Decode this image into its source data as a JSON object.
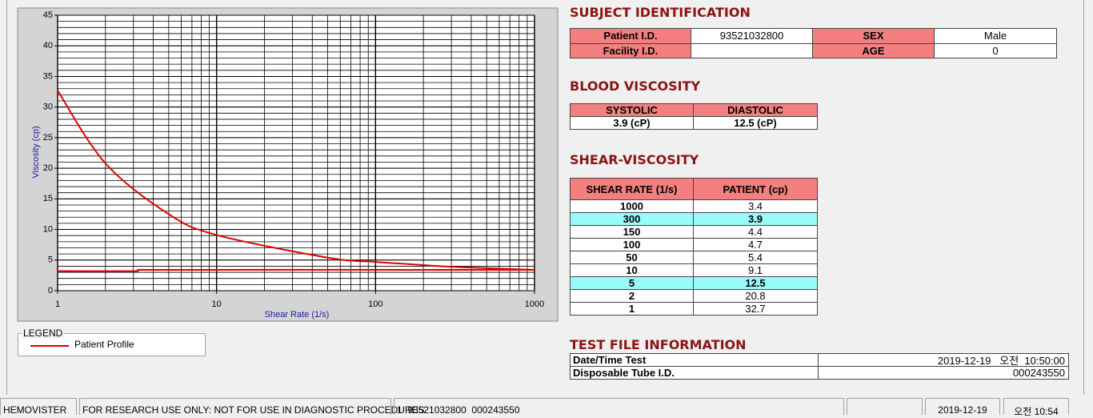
{
  "chart_data": {
    "type": "line",
    "x_label": "Shear Rate (1/s)",
    "y_label": "Viscosity (cp)",
    "xscale": "log",
    "xlim": [
      1,
      1000
    ],
    "xticks": [
      1,
      10,
      100,
      1000
    ],
    "ylim": [
      0,
      45
    ],
    "yticks": [
      0,
      5,
      10,
      15,
      20,
      25,
      30,
      35,
      40,
      45
    ],
    "grid": true,
    "minor_grid": true,
    "legend_title": "LEGEND",
    "series": [
      {
        "name": "Patient Profile",
        "color": "#e00000",
        "x": [
          1,
          2,
          5,
          10,
          50,
          100,
          150,
          300,
          1000
        ],
        "values": [
          32.7,
          20.8,
          12.5,
          9.1,
          5.4,
          4.7,
          4.4,
          3.9,
          3.4
        ]
      },
      {
        "color": "#e00000",
        "x": [
          1,
          3.2,
          3.2,
          1000
        ],
        "values": [
          3.2,
          3.2,
          3.4,
          3.4
        ]
      }
    ]
  },
  "subject": {
    "title": "SUBJECT IDENTIFICATION",
    "rows": [
      [
        "Patient I.D.",
        "93521032800",
        "SEX",
        "Male"
      ],
      [
        "Facility I.D.",
        null,
        "AGE",
        "0"
      ]
    ]
  },
  "blood": {
    "title": "BLOOD VISCOSITY",
    "headers": [
      "SYSTOLIC",
      "DIASTOLIC"
    ],
    "values": [
      "3.9 (cP)",
      "12.5 (cP)"
    ]
  },
  "shear": {
    "title": "SHEAR-VISCOSITY",
    "headers": [
      "SHEAR RATE (1/s)",
      "PATIENT (cp)"
    ],
    "rows": [
      [
        "1000",
        "3.4"
      ],
      [
        "300",
        "3.9"
      ],
      [
        "150",
        "4.4"
      ],
      [
        "100",
        "4.7"
      ],
      [
        "50",
        "5.4"
      ],
      [
        "10",
        "9.1"
      ],
      [
        "5",
        "12.5"
      ],
      [
        "2",
        "20.8"
      ],
      [
        "1",
        "32.7"
      ]
    ]
  },
  "test_file": {
    "title": "TEST FILE INFORMATION",
    "rows": [
      [
        "Date/Time Test",
        "2019-12-19   오전  10:50:00"
      ],
      [
        "Disposable Tube I.D.",
        "000243550"
      ]
    ]
  },
  "status_bar": [
    "HEMOVISTER",
    "FOR RESEARCH USE ONLY: NOT FOR USE IN DIAGNOSTIC PROCEDURES",
    "1  93521032800  000243550",
    "2019-12-19",
    "오전 10:54"
  ]
}
